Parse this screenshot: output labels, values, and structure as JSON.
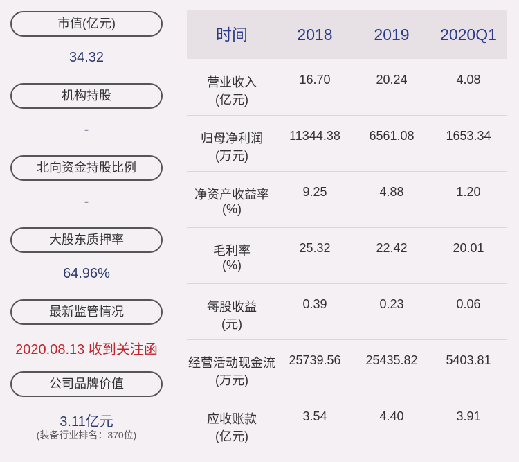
{
  "summary": [
    {
      "label": "市值(亿元)",
      "value": "34.32"
    },
    {
      "label": "机构持股",
      "value": "-"
    },
    {
      "label": "北向资金持股比例",
      "value": "-"
    },
    {
      "label": "大股东质押率",
      "value": "64.96%"
    },
    {
      "label": "最新监管情况",
      "value": "2020.08.13 收到关注函"
    },
    {
      "label": "公司品牌价值",
      "value": "3.11亿元",
      "note": "(装备行业排名：370位)"
    }
  ],
  "table": {
    "header": [
      "时间",
      "2018",
      "2019",
      "2020Q1"
    ],
    "rows": [
      {
        "name": "营业收入",
        "unit": "(亿元)",
        "values": [
          "16.70",
          "20.24",
          "4.08"
        ]
      },
      {
        "name": "归母净利润",
        "unit": "(万元)",
        "values": [
          "11344.38",
          "6561.08",
          "1653.34"
        ]
      },
      {
        "name": "净资产收益率",
        "unit": "(%)",
        "values": [
          "9.25",
          "4.88",
          "1.20"
        ]
      },
      {
        "name": "毛利率",
        "unit": "(%)",
        "values": [
          "25.32",
          "22.42",
          "20.01"
        ]
      },
      {
        "name": "每股收益",
        "unit": "(元)",
        "values": [
          "0.39",
          "0.23",
          "0.06"
        ]
      },
      {
        "name": "经营活动现金流",
        "unit": "(万元)",
        "values": [
          "25739.56",
          "25435.82",
          "5403.81"
        ]
      },
      {
        "name": "应收账款",
        "unit": "(亿元)",
        "values": [
          "3.54",
          "4.40",
          "3.91"
        ]
      }
    ]
  }
}
